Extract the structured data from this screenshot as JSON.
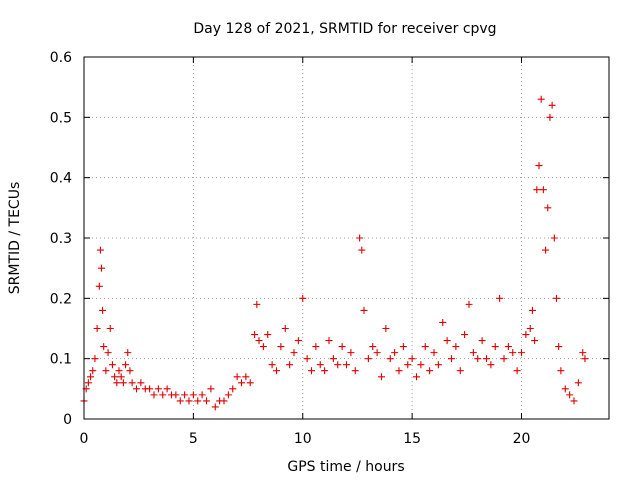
{
  "chart_data": {
    "type": "scatter",
    "title": "Day 128 of 2021, SRMTID for receiver cpvg",
    "xlabel": "GPS time / hours",
    "ylabel": "SRMTID / TECUs",
    "xlim": [
      0,
      24
    ],
    "ylim": [
      0,
      0.6
    ],
    "grid": true,
    "marker": "+",
    "color": "#ff0000",
    "xticks": [
      0,
      5,
      10,
      15,
      20
    ],
    "yticks": [
      0,
      0.1,
      0.2,
      0.3,
      0.4,
      0.5,
      0.6
    ],
    "xtick_labels": [
      "0",
      "5",
      "10",
      "15",
      "20"
    ],
    "ytick_labels": [
      "0",
      "0.1",
      "0.2",
      "0.3",
      "0.4",
      "0.5",
      "0.6"
    ],
    "series": [
      {
        "name": "SRMTID",
        "x": [
          0.0,
          0.1,
          0.2,
          0.3,
          0.4,
          0.5,
          0.6,
          0.7,
          0.75,
          0.8,
          0.85,
          0.9,
          1.0,
          1.1,
          1.2,
          1.3,
          1.4,
          1.5,
          1.6,
          1.7,
          1.8,
          1.9,
          2.0,
          2.1,
          2.2,
          2.4,
          2.6,
          2.8,
          3.0,
          3.2,
          3.4,
          3.6,
          3.8,
          4.0,
          4.2,
          4.4,
          4.6,
          4.8,
          5.0,
          5.2,
          5.4,
          5.6,
          5.8,
          6.0,
          6.2,
          6.4,
          6.6,
          6.8,
          7.0,
          7.2,
          7.4,
          7.6,
          7.8,
          7.9,
          8.0,
          8.2,
          8.4,
          8.6,
          8.8,
          9.0,
          9.2,
          9.4,
          9.6,
          9.8,
          10.0,
          10.2,
          10.4,
          10.6,
          10.8,
          11.0,
          11.2,
          11.4,
          11.6,
          11.8,
          12.0,
          12.2,
          12.4,
          12.6,
          12.7,
          12.8,
          13.0,
          13.2,
          13.4,
          13.6,
          13.8,
          14.0,
          14.2,
          14.4,
          14.6,
          14.8,
          15.0,
          15.2,
          15.4,
          15.6,
          15.8,
          16.0,
          16.2,
          16.4,
          16.6,
          16.8,
          17.0,
          17.2,
          17.4,
          17.6,
          17.8,
          18.0,
          18.2,
          18.4,
          18.6,
          18.8,
          19.0,
          19.2,
          19.4,
          19.6,
          19.8,
          20.0,
          20.2,
          20.4,
          20.5,
          20.6,
          20.7,
          20.8,
          20.9,
          21.0,
          21.1,
          21.2,
          21.3,
          21.4,
          21.5,
          21.6,
          21.7,
          21.8,
          22.0,
          22.2,
          22.4,
          22.6,
          22.8,
          22.9
        ],
        "y": [
          0.03,
          0.05,
          0.06,
          0.07,
          0.08,
          0.1,
          0.15,
          0.22,
          0.28,
          0.25,
          0.18,
          0.12,
          0.08,
          0.11,
          0.15,
          0.09,
          0.07,
          0.06,
          0.08,
          0.07,
          0.06,
          0.09,
          0.11,
          0.08,
          0.06,
          0.05,
          0.06,
          0.05,
          0.05,
          0.04,
          0.05,
          0.04,
          0.05,
          0.04,
          0.04,
          0.03,
          0.04,
          0.03,
          0.04,
          0.03,
          0.04,
          0.03,
          0.05,
          0.02,
          0.03,
          0.03,
          0.04,
          0.05,
          0.07,
          0.06,
          0.07,
          0.06,
          0.14,
          0.19,
          0.13,
          0.12,
          0.14,
          0.09,
          0.08,
          0.12,
          0.15,
          0.09,
          0.11,
          0.13,
          0.2,
          0.1,
          0.08,
          0.12,
          0.09,
          0.08,
          0.13,
          0.1,
          0.09,
          0.12,
          0.09,
          0.11,
          0.08,
          0.3,
          0.28,
          0.18,
          0.1,
          0.12,
          0.11,
          0.07,
          0.15,
          0.1,
          0.11,
          0.08,
          0.12,
          0.09,
          0.1,
          0.07,
          0.09,
          0.12,
          0.08,
          0.11,
          0.09,
          0.16,
          0.13,
          0.1,
          0.12,
          0.08,
          0.14,
          0.19,
          0.11,
          0.1,
          0.13,
          0.1,
          0.09,
          0.12,
          0.2,
          0.1,
          0.12,
          0.11,
          0.08,
          0.11,
          0.14,
          0.15,
          0.18,
          0.13,
          0.38,
          0.42,
          0.53,
          0.38,
          0.28,
          0.35,
          0.5,
          0.52,
          0.3,
          0.2,
          0.12,
          0.08,
          0.05,
          0.04,
          0.03,
          0.06,
          0.11,
          0.1
        ]
      }
    ]
  }
}
